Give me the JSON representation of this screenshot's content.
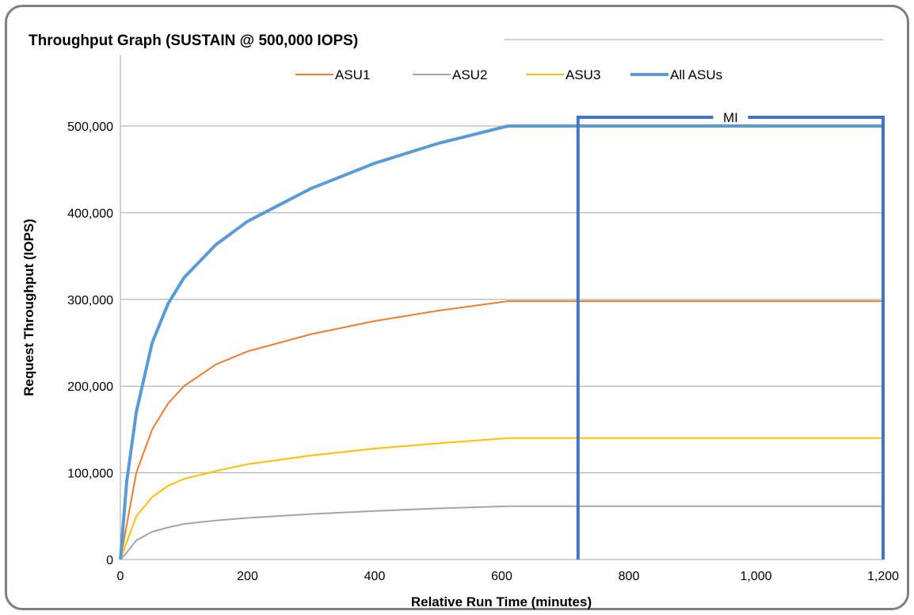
{
  "chart_data": {
    "type": "line",
    "title": "Throughput Graph (SUSTAIN @ 500,000 IOPS)",
    "xlabel": "Relative Run Time (minutes)",
    "ylabel": "Request Throughput (IOPS)",
    "xlim": [
      0,
      1200
    ],
    "ylim": [
      0,
      500000
    ],
    "x_ticks": [
      0,
      200,
      400,
      600,
      800,
      1000,
      1200
    ],
    "x_tick_labels": [
      "0",
      "200",
      "400",
      "600",
      "800",
      "1,000",
      "1,200"
    ],
    "y_ticks": [
      0,
      100000,
      200000,
      300000,
      400000,
      500000
    ],
    "y_tick_labels": [
      "0",
      "100,000",
      "200,000",
      "300,000",
      "400,000",
      "500,000"
    ],
    "grid": "horizontal",
    "legend_position": "top-right",
    "series": [
      {
        "name": "ASU1",
        "color": "#ed7d31",
        "x": [
          0,
          10,
          25,
          50,
          75,
          100,
          150,
          200,
          300,
          400,
          500,
          610,
          1200
        ],
        "y": [
          0,
          40000,
          100000,
          150000,
          180000,
          200000,
          225000,
          240000,
          260000,
          275000,
          287000,
          298000,
          298000
        ]
      },
      {
        "name": "ASU2",
        "color": "#a5a5a5",
        "x": [
          0,
          10,
          25,
          50,
          75,
          100,
          150,
          200,
          300,
          400,
          500,
          610,
          1200
        ],
        "y": [
          0,
          8000,
          22000,
          32000,
          37000,
          41000,
          45000,
          48000,
          52500,
          56000,
          59000,
          61500,
          61500
        ]
      },
      {
        "name": "ASU3",
        "color": "#ffc000",
        "x": [
          0,
          10,
          25,
          50,
          75,
          100,
          150,
          200,
          300,
          400,
          500,
          610,
          1200
        ],
        "y": [
          0,
          20000,
          50000,
          72000,
          85000,
          93000,
          102000,
          110000,
          120000,
          128000,
          134000,
          140000,
          140000
        ]
      },
      {
        "name": "All ASUs",
        "color": "#5b9bd5",
        "x": [
          0,
          10,
          25,
          50,
          75,
          100,
          150,
          200,
          300,
          400,
          500,
          610,
          1200
        ],
        "y": [
          0,
          90000,
          170000,
          250000,
          295000,
          325000,
          363000,
          390000,
          428000,
          457000,
          480000,
          500000,
          500000
        ]
      }
    ],
    "annotations": [
      {
        "text": "MI",
        "x_start": 720,
        "x_end": 1200,
        "y": 510000,
        "color": "#4472c4"
      }
    ]
  }
}
